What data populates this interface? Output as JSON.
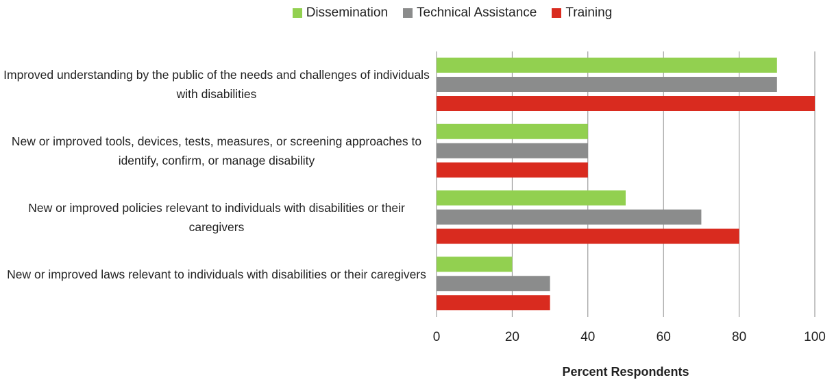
{
  "chart_data": {
    "type": "hbar",
    "categories": [
      "Improved understanding by the public of the needs and challenges of individuals with disabilities",
      "New or improved tools, devices, tests, measures, or screening approaches to identify, confirm, or manage disability",
      "New or improved policies relevant to individuals with disabilities or their caregivers",
      "New or improved laws relevant to individuals with disabilities or their caregivers"
    ],
    "series": [
      {
        "name": "Dissemination",
        "color": "#92d050",
        "values": [
          90,
          40,
          50,
          20
        ]
      },
      {
        "name": "Technical Assistance",
        "color": "#8b8c8c",
        "values": [
          90,
          40,
          70,
          30
        ]
      },
      {
        "name": "Training",
        "color": "#d92b1f",
        "values": [
          100,
          40,
          80,
          30
        ]
      }
    ],
    "xlim": [
      0,
      100
    ],
    "xticks": [
      0,
      20,
      40,
      60,
      80,
      100
    ],
    "x_label": "Percent Respondents",
    "grid": true,
    "legend": "top"
  }
}
